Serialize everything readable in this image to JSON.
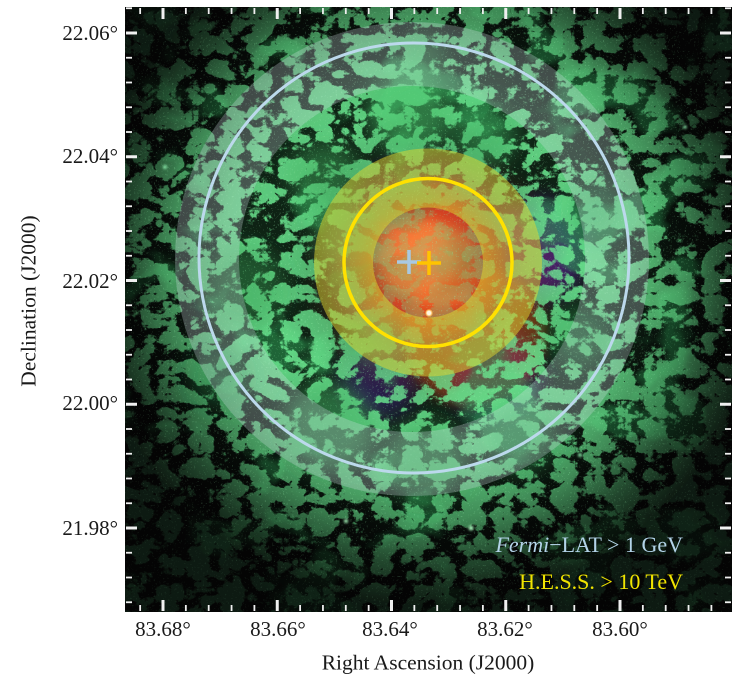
{
  "figure": {
    "x_axis": {
      "label": "Right Ascension (J2000)",
      "ticks": [
        "83.68°",
        "83.66°",
        "83.64°",
        "83.62°",
        "83.60°"
      ]
    },
    "y_axis": {
      "label": "Declination (J2000)",
      "ticks": [
        "22.06°",
        "22.04°",
        "22.02°",
        "22.00°",
        "21.98°"
      ]
    },
    "legend": {
      "fermi": {
        "prefix": "Fermi",
        "rest": "−LAT > 1 GeV",
        "color": "#b3d3e8"
      },
      "hess": {
        "text": "H.E.S.S. > 10 TeV",
        "color": "#f0e400"
      }
    }
  },
  "chart_data": {
    "type": "heatmap",
    "title": "",
    "xlabel": "Right Ascension (J2000)",
    "ylabel": "Declination (J2000)",
    "x_tick_values": [
      83.68,
      83.66,
      83.64,
      83.62,
      83.6
    ],
    "y_tick_values": [
      22.06,
      22.04,
      22.02,
      22.0,
      21.98
    ],
    "x_range_deg": [
      83.687,
      83.581
    ],
    "y_range_deg": [
      21.966,
      22.064
    ],
    "x_axis_inverted": true,
    "minor_tick_step_deg": 0.004,
    "grid": false,
    "legend_position": "lower right",
    "legend": [
      {
        "label": "Fermi−LAT > 1 GeV",
        "color": "#b3d3e8",
        "style": "italic-prefix"
      },
      {
        "label": "H.E.S.S. > 10 TeV",
        "color": "#f0e400",
        "style": "roman"
      }
    ],
    "overlays": [
      {
        "name": "fermi-centroid-cross",
        "ra_deg": 83.637,
        "dec_deg": 22.023,
        "color": "#a9c9e2"
      },
      {
        "name": "hess-centroid-cross",
        "ra_deg": 83.634,
        "dec_deg": 22.023,
        "color": "#ffc400"
      },
      {
        "name": "fermi-extension-circle",
        "ra_deg": 83.636,
        "dec_deg": 22.024,
        "radius_deg": 0.035,
        "color": "#bcd9ec"
      },
      {
        "name": "fermi-extension-uncertainty-band",
        "radius_inner_deg": 0.029,
        "radius_outer_deg": 0.038,
        "color": "rgba(215,228,235,0.28)"
      },
      {
        "name": "hess-extension-circle",
        "ra_deg": 83.634,
        "dec_deg": 22.023,
        "radius_deg": 0.014,
        "color": "#ffe100"
      },
      {
        "name": "hess-extension-uncertainty-band",
        "radius_inner_deg": 0.009,
        "radius_outer_deg": 0.018,
        "color": "rgba(225,215,45,0.5)"
      },
      {
        "name": "white-dot-marker",
        "ra_deg": 83.633,
        "dec_deg": 22.015,
        "color": "#fff8e8"
      }
    ],
    "background_description": "composite sky image: green filamentary nebula shell, red-orange central emission, purple inner ring on black"
  }
}
